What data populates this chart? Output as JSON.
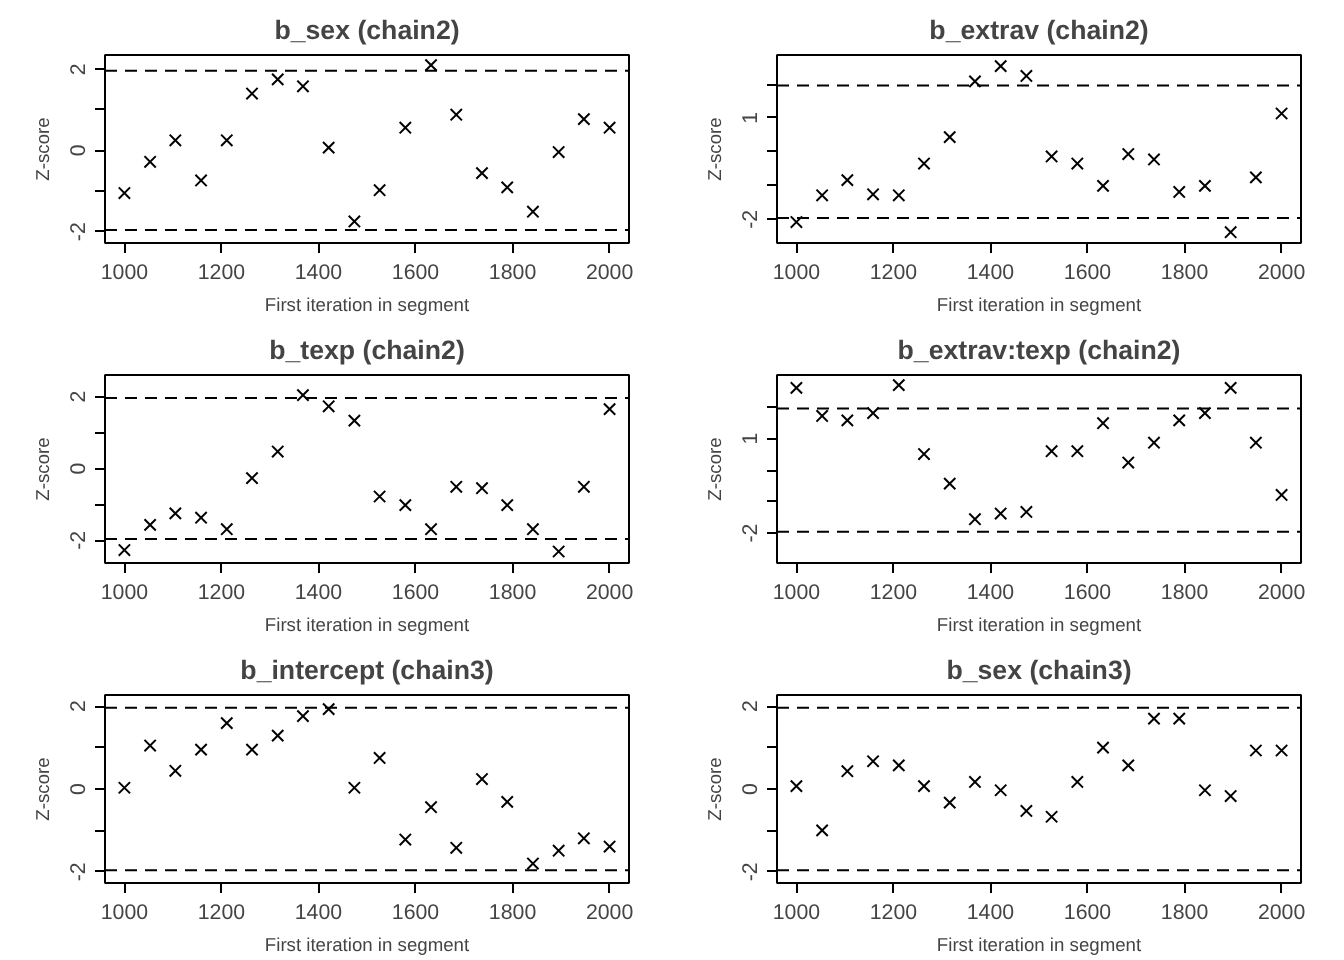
{
  "chart_data": [
    {
      "type": "scatter",
      "title": "b_sex (chain2)",
      "xlabel": "First iteration in segment",
      "ylabel": "Z-score",
      "x": [
        1000,
        1053,
        1105,
        1158,
        1211,
        1263,
        1316,
        1368,
        1421,
        1474,
        1526,
        1579,
        1632,
        1684,
        1737,
        1789,
        1842,
        1895,
        1947,
        2000
      ],
      "series": [
        {
          "color": "#000000",
          "values": [
            -1.05,
            -0.28,
            0.25,
            -0.74,
            0.25,
            1.4,
            1.75,
            1.58,
            0.07,
            -1.75,
            -0.98,
            0.56,
            2.1,
            0.88,
            -0.56,
            -0.91,
            -1.51,
            -0.04,
            0.77,
            0.56
          ]
        }
      ],
      "xlim": [
        960,
        2040
      ],
      "xticks": [
        1000,
        1200,
        1400,
        1600,
        1800,
        2000
      ],
      "ylim": [
        -2.28,
        2.35
      ],
      "yticks": [
        -2,
        {
          "value": -1,
          "label": null
        },
        0,
        {
          "value": 1,
          "label": null
        },
        2
      ],
      "ref_lines": [
        {
          "axis": "y",
          "value": -1.96,
          "line_style": "dashed"
        },
        {
          "axis": "y",
          "value": 1.96,
          "line_style": "dashed"
        }
      ],
      "marker": "cross",
      "grid": false
    },
    {
      "type": "scatter",
      "title": "b_extrav (chain2)",
      "xlabel": "First iteration in segment",
      "ylabel": "Z-score",
      "x": [
        1000,
        1053,
        1105,
        1158,
        1211,
        1263,
        1316,
        1368,
        1421,
        1474,
        1526,
        1579,
        1632,
        1684,
        1737,
        1789,
        1842,
        1895,
        1947,
        2000
      ],
      "series": [
        {
          "color": "#000000",
          "values": [
            -2.08,
            -1.29,
            -0.84,
            -1.26,
            -1.29,
            -0.35,
            0.43,
            2.08,
            2.53,
            2.24,
            -0.14,
            -0.35,
            -1.01,
            -0.07,
            -0.23,
            -1.19,
            -1.01,
            -2.38,
            -0.76,
            1.13
          ]
        }
      ],
      "xlim": [
        960,
        2040
      ],
      "xticks": [
        1000,
        1200,
        1400,
        1600,
        1800,
        2000
      ],
      "ylim": [
        -2.7,
        2.86
      ],
      "yticks": [
        -2,
        {
          "value": -1,
          "label": null
        },
        {
          "value": 0,
          "label": null
        },
        1,
        {
          "value": 2,
          "label": null
        }
      ],
      "ref_lines": [
        {
          "axis": "y",
          "value": -1.96,
          "line_style": "dashed"
        },
        {
          "axis": "y",
          "value": 1.96,
          "line_style": "dashed"
        }
      ],
      "marker": "cross",
      "grid": false
    },
    {
      "type": "scatter",
      "title": "b_texp (chain2)",
      "xlabel": "First iteration in segment",
      "ylabel": "Z-score",
      "x": [
        1000,
        1053,
        1105,
        1158,
        1211,
        1263,
        1316,
        1368,
        1421,
        1474,
        1526,
        1579,
        1632,
        1684,
        1737,
        1789,
        1842,
        1895,
        1947,
        2000
      ],
      "series": [
        {
          "color": "#000000",
          "values": [
            -2.27,
            -1.57,
            -1.25,
            -1.37,
            -1.69,
            -0.27,
            0.47,
            2.04,
            1.73,
            1.33,
            -0.78,
            -1.02,
            -1.69,
            -0.51,
            -0.55,
            -1.02,
            -1.69,
            -2.31,
            -0.51,
            1.65
          ]
        }
      ],
      "xlim": [
        960,
        2040
      ],
      "xticks": [
        1000,
        1200,
        1400,
        1600,
        1800,
        2000
      ],
      "ylim": [
        -2.63,
        2.6
      ],
      "yticks": [
        -2,
        {
          "value": -1,
          "label": null
        },
        0,
        {
          "value": 1,
          "label": null
        },
        2
      ],
      "ref_lines": [
        {
          "axis": "y",
          "value": -1.96,
          "line_style": "dashed"
        },
        {
          "axis": "y",
          "value": 1.96,
          "line_style": "dashed"
        }
      ],
      "marker": "cross",
      "grid": false
    },
    {
      "type": "scatter",
      "title": "b_extrav:texp (chain2)",
      "xlabel": "First iteration in segment",
      "ylabel": "Z-score",
      "x": [
        1000,
        1053,
        1105,
        1158,
        1211,
        1263,
        1316,
        1368,
        1421,
        1474,
        1526,
        1579,
        1632,
        1684,
        1737,
        1789,
        1842,
        1895,
        1947,
        2000
      ],
      "series": [
        {
          "color": "#000000",
          "values": [
            2.61,
            1.72,
            1.58,
            1.81,
            2.7,
            0.51,
            -0.43,
            -1.56,
            -1.38,
            -1.33,
            0.6,
            0.6,
            1.49,
            0.24,
            0.87,
            1.58,
            1.81,
            2.61,
            0.87,
            -0.79
          ]
        }
      ],
      "xlim": [
        960,
        2040
      ],
      "xticks": [
        1000,
        1200,
        1400,
        1600,
        1800,
        2000
      ],
      "ylim": [
        -2.95,
        3.02
      ],
      "yticks": [
        -2,
        {
          "value": -1,
          "label": null
        },
        {
          "value": 0,
          "label": null
        },
        1,
        {
          "value": 2,
          "label": null
        }
      ],
      "ref_lines": [
        {
          "axis": "y",
          "value": -1.96,
          "line_style": "dashed"
        },
        {
          "axis": "y",
          "value": 1.96,
          "line_style": "dashed"
        }
      ],
      "marker": "cross",
      "grid": false
    },
    {
      "type": "scatter",
      "title": "b_intercept (chain3)",
      "xlabel": "First iteration in segment",
      "ylabel": "Z-score",
      "x": [
        1000,
        1053,
        1105,
        1158,
        1211,
        1263,
        1316,
        1368,
        1421,
        1474,
        1526,
        1579,
        1632,
        1684,
        1737,
        1789,
        1842,
        1895,
        1947,
        2000
      ],
      "series": [
        {
          "color": "#000000",
          "values": [
            0.03,
            1.05,
            0.44,
            0.95,
            1.59,
            0.95,
            1.29,
            1.76,
            1.93,
            0.03,
            0.75,
            -1.22,
            -0.44,
            -1.42,
            0.24,
            -0.31,
            -1.8,
            -1.49,
            -1.19,
            -1.39
          ]
        }
      ],
      "xlim": [
        960,
        2040
      ],
      "xticks": [
        1000,
        1200,
        1400,
        1600,
        1800,
        2000
      ],
      "ylim": [
        -2.27,
        2.27
      ],
      "yticks": [
        -2,
        {
          "value": -1,
          "label": null
        },
        0,
        {
          "value": 1,
          "label": null
        },
        2
      ],
      "ref_lines": [
        {
          "axis": "y",
          "value": -1.96,
          "line_style": "dashed"
        },
        {
          "axis": "y",
          "value": 1.96,
          "line_style": "dashed"
        }
      ],
      "marker": "cross",
      "grid": false
    },
    {
      "type": "scatter",
      "title": "b_sex (chain3)",
      "xlabel": "First iteration in segment",
      "ylabel": "Z-score",
      "x": [
        1000,
        1053,
        1105,
        1158,
        1211,
        1263,
        1316,
        1368,
        1421,
        1474,
        1526,
        1579,
        1632,
        1684,
        1737,
        1789,
        1842,
        1895,
        1947,
        2000
      ],
      "series": [
        {
          "color": "#000000",
          "values": [
            0.07,
            -1.0,
            0.43,
            0.67,
            0.57,
            0.07,
            -0.33,
            0.17,
            -0.03,
            -0.53,
            -0.67,
            0.17,
            1.0,
            0.57,
            1.7,
            1.7,
            -0.03,
            -0.17,
            0.93,
            0.93
          ]
        }
      ],
      "xlim": [
        960,
        2040
      ],
      "xticks": [
        1000,
        1200,
        1400,
        1600,
        1800,
        2000
      ],
      "ylim": [
        -2.27,
        2.27
      ],
      "yticks": [
        -2,
        {
          "value": -1,
          "label": null
        },
        0,
        {
          "value": 1,
          "label": null
        },
        2
      ],
      "ref_lines": [
        {
          "axis": "y",
          "value": -1.96,
          "line_style": "dashed"
        },
        {
          "axis": "y",
          "value": 1.96,
          "line_style": "dashed"
        }
      ],
      "marker": "cross",
      "grid": false
    }
  ]
}
